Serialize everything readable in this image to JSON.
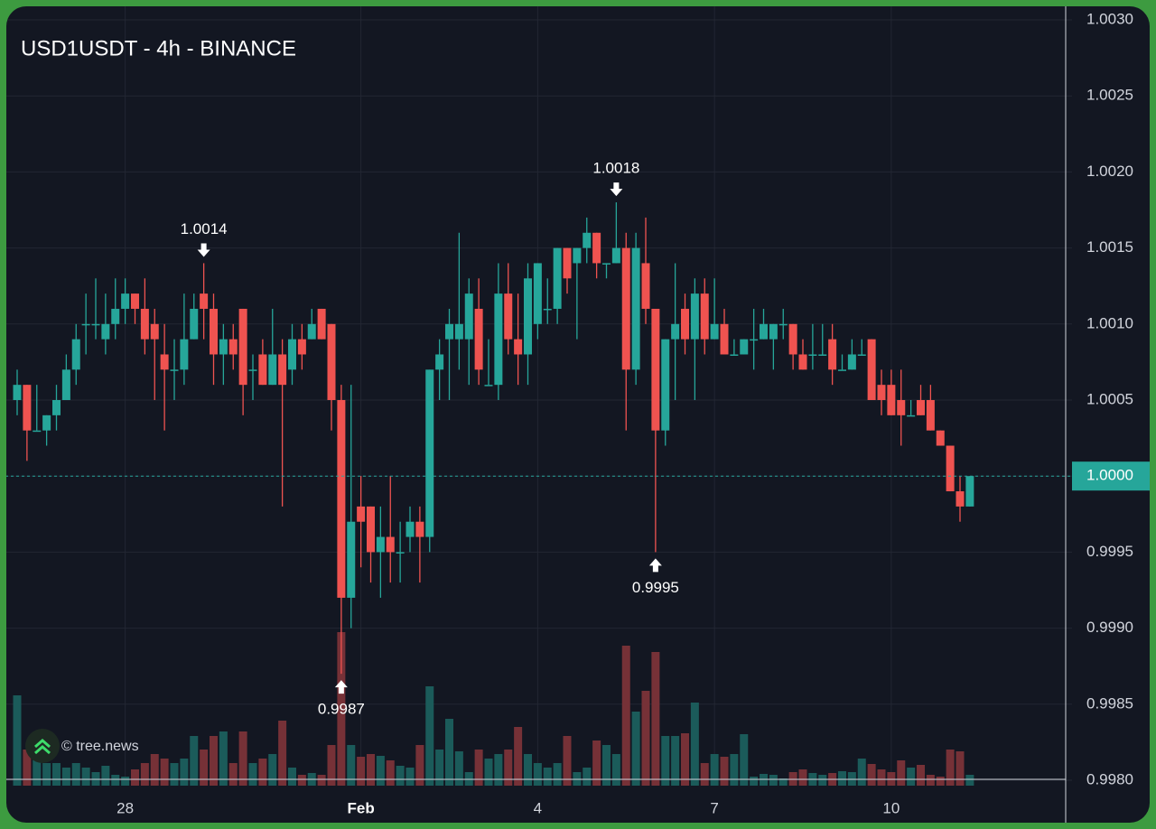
{
  "chart_data": {
    "type": "candlestick",
    "title": "USD1USDT - 4h - BINANCE",
    "watermark": "© tree.news",
    "last_price_label": "1.0000",
    "categories": [
      null,
      null,
      null,
      null,
      null,
      null,
      null,
      null,
      null,
      null,
      null,
      "28",
      null,
      null,
      null,
      null,
      null,
      null,
      null,
      null,
      null,
      null,
      null,
      null,
      null,
      null,
      null,
      null,
      null,
      null,
      null,
      null,
      null,
      null,
      null,
      "Feb",
      null,
      null,
      null,
      null,
      null,
      null,
      null,
      null,
      null,
      null,
      null,
      null,
      null,
      null,
      null,
      null,
      null,
      "4",
      null,
      null,
      null,
      null,
      null,
      null,
      null,
      null,
      null,
      null,
      null,
      null,
      null,
      null,
      null,
      null,
      null,
      "7",
      null,
      null,
      null,
      null,
      null,
      null,
      null,
      null,
      null,
      null,
      null,
      null,
      null,
      null,
      null,
      null,
      null,
      "10",
      null,
      null,
      null,
      null,
      null,
      null,
      null,
      null
    ],
    "open": [
      1.0005,
      1.0006,
      1.0003,
      1.0003,
      1.0004,
      1.0005,
      1.0007,
      1.001,
      1.001,
      1.0009,
      1.001,
      1.0011,
      1.0012,
      1.0011,
      1.001,
      1.0008,
      1.0007,
      1.0007,
      1.0009,
      1.0012,
      1.0011,
      1.0008,
      1.0009,
      1.0011,
      1.0007,
      1.0008,
      1.0006,
      1.0008,
      1.0007,
      1.0009,
      1.0009,
      1.0011,
      1.001,
      1.0005,
      0.9992,
      0.9998,
      0.9998,
      0.9995,
      0.9996,
      0.9995,
      0.9996,
      0.9997,
      0.9996,
      1.0007,
      1.0009,
      1.0009,
      1.0009,
      1.0011,
      1.0006,
      1.0006,
      1.0012,
      1.0009,
      1.0008,
      1.001,
      1.0011,
      1.0011,
      1.0015,
      1.0014,
      1.0015,
      1.0016,
      1.0014,
      1.0014,
      1.0015,
      1.0007,
      1.0014,
      1.0011,
      1.0003,
      1.0009,
      1.0011,
      1.0009,
      1.0012,
      1.0009,
      1.001,
      1.0008,
      1.0008,
      1.0009,
      1.0009,
      1.0009,
      1.001,
      1.001,
      1.0008,
      1.0008,
      1.0008,
      1.0009,
      1.0007,
      1.0007,
      1.0008,
      1.0009,
      1.0006,
      1.0006,
      1.0005,
      1.0004,
      1.0005,
      1.0005,
      1.0003,
      1.0002,
      0.9999,
      0.9998
    ],
    "high": [
      1.0007,
      1.0006,
      1.0006,
      1.0004,
      1.0006,
      1.0008,
      1.001,
      1.0012,
      1.0013,
      1.0012,
      1.0013,
      1.0013,
      1.0012,
      1.0013,
      1.0011,
      1.001,
      1.0009,
      1.0012,
      1.0012,
      1.0014,
      1.0012,
      1.001,
      1.001,
      1.0011,
      1.0008,
      1.0009,
      1.0011,
      1.0009,
      1.001,
      1.001,
      1.0011,
      1.0011,
      1.001,
      1.0006,
      1.0006,
      1,
      0.9998,
      0.9998,
      1,
      0.9997,
      0.9998,
      0.9998,
      1.0007,
      1.0009,
      1.0011,
      1.0016,
      1.0013,
      1.0013,
      1.0009,
      1.0014,
      1.0014,
      1.0012,
      1.0014,
      1.0014,
      1.0013,
      1.0015,
      1.0015,
      1.0015,
      1.0017,
      1.0016,
      1.0014,
      1.0018,
      1.0016,
      1.0016,
      1.0017,
      1.0011,
      1.0009,
      1.0014,
      1.0012,
      1.0013,
      1.0013,
      1.0013,
      1.0011,
      1.0009,
      1.0009,
      1.0011,
      1.0011,
      1.001,
      1.0011,
      1.001,
      1.0009,
      1.001,
      1.001,
      1.001,
      1.0008,
      1.0009,
      1.0009,
      1.0009,
      1.0007,
      1.0007,
      1.0007,
      1.0005,
      1.0006,
      1.0006,
      1.0003,
      1.0002,
      1,
      1
    ],
    "low": [
      1.0004,
      1.0001,
      1.0003,
      1.0002,
      1.0003,
      1.0005,
      1.0006,
      1.0008,
      1.0009,
      1.0008,
      1.0009,
      1.001,
      1.001,
      1.0008,
      1.0005,
      1.0003,
      1.0005,
      1.0006,
      1.0009,
      1.0009,
      1.0006,
      1.0006,
      1.0007,
      1.0004,
      1.0005,
      1.0006,
      1.0006,
      0.9998,
      1.0006,
      1.0007,
      1.0009,
      1.0009,
      1.0003,
      0.9987,
      0.999,
      0.9994,
      0.9993,
      0.9992,
      0.9993,
      0.9993,
      0.9995,
      0.9993,
      0.9995,
      1.0005,
      1.0005,
      1.0007,
      1.0006,
      1.0006,
      1.0006,
      1.0005,
      1.0008,
      1.0006,
      1.0006,
      1.0009,
      1.001,
      1.001,
      1.0012,
      1.0009,
      1.0014,
      1.0013,
      1.0013,
      1.0014,
      1.0003,
      1.0006,
      1.001,
      0.9995,
      1.0002,
      1.0005,
      1.0008,
      1.0005,
      1.0008,
      1.0009,
      1.0008,
      1.0008,
      1.0008,
      1.0007,
      1.0009,
      1.0007,
      1.0009,
      1.0007,
      1.0007,
      1.0007,
      1.0008,
      1.0006,
      1.0007,
      1.0007,
      1.0008,
      1.0005,
      1.0004,
      1.0004,
      1.0002,
      1.0004,
      1.0004,
      1.0003,
      1.0002,
      0.9999,
      0.9997,
      0.9998
    ],
    "close": [
      1.0006,
      1.0003,
      1.0003,
      1.0004,
      1.0005,
      1.0007,
      1.0009,
      1.001,
      1.001,
      1.001,
      1.0011,
      1.0012,
      1.0011,
      1.0009,
      1.0009,
      1.0007,
      1.0007,
      1.0009,
      1.0011,
      1.0011,
      1.0008,
      1.0009,
      1.0008,
      1.0006,
      1.0007,
      1.0006,
      1.0008,
      1.0006,
      1.0009,
      1.0008,
      1.001,
      1.0009,
      1.0005,
      0.9992,
      0.9997,
      0.9997,
      0.9995,
      0.9996,
      0.9995,
      0.9995,
      0.9997,
      0.9996,
      1.0007,
      1.0008,
      1.001,
      1.001,
      1.0012,
      1.0007,
      1.0006,
      1.0012,
      1.0009,
      1.0008,
      1.0013,
      1.0014,
      1.0011,
      1.0015,
      1.0013,
      1.0015,
      1.0016,
      1.0014,
      1.0014,
      1.0015,
      1.0007,
      1.0015,
      1.0011,
      1.0003,
      1.0009,
      1.001,
      1.0009,
      1.0012,
      1.0009,
      1.001,
      1.0008,
      1.0008,
      1.0009,
      1.0009,
      1.001,
      1.001,
      1.001,
      1.0008,
      1.0007,
      1.0008,
      1.0008,
      1.0007,
      1.0007,
      1.0008,
      1.0008,
      1.0005,
      1.0005,
      1.0004,
      1.0004,
      1.0004,
      1.0004,
      1.0003,
      1.0002,
      0.9999,
      0.9998,
      1
    ],
    "volume": [
      100,
      40,
      30,
      25,
      25,
      20,
      25,
      20,
      15,
      22,
      12,
      10,
      18,
      25,
      35,
      30,
      25,
      30,
      55,
      40,
      55,
      60,
      25,
      60,
      25,
      30,
      35,
      72,
      20,
      12,
      14,
      12,
      45,
      170,
      45,
      32,
      35,
      33,
      28,
      22,
      20,
      45,
      110,
      40,
      74,
      38,
      15,
      40,
      30,
      35,
      40,
      65,
      35,
      25,
      20,
      25,
      55,
      15,
      20,
      50,
      45,
      35,
      155,
      82,
      105,
      148,
      55,
      55,
      58,
      92,
      25,
      35,
      32,
      35,
      57,
      10,
      13,
      12,
      8,
      15,
      18,
      14,
      12,
      14,
      16,
      15,
      30,
      24,
      18,
      15,
      28,
      20,
      23,
      12,
      10,
      40,
      38,
      12
    ],
    "up_color": "#26a69a",
    "down_color": "#ef5350",
    "up_volume_color": "#1b5b5a",
    "down_volume_color": "#763137",
    "ylim": [
      0.998,
      1.003
    ],
    "yticks": [
      {
        "value": 0.998,
        "label": "0.9980"
      },
      0.9985,
      {
        "value": 0.999,
        "label": "0.9990"
      },
      0.9995,
      {
        "value": 1,
        "label": "1.0000"
      },
      1.0005,
      {
        "value": 1.001,
        "label": "1.0010"
      },
      1.0015,
      {
        "value": 1.002,
        "label": "1.0020"
      },
      1.0025,
      {
        "value": 1.003,
        "label": "1.0030"
      }
    ],
    "grid": true,
    "annotations": [
      {
        "text": "1.0014",
        "candle": 19,
        "kind": "high"
      },
      {
        "text": "1.0018",
        "candle": 61,
        "kind": "high"
      },
      {
        "text": "0.9987",
        "candle": 33,
        "kind": "low"
      },
      {
        "text": "0.9995",
        "candle": 65,
        "kind": "low"
      }
    ]
  }
}
